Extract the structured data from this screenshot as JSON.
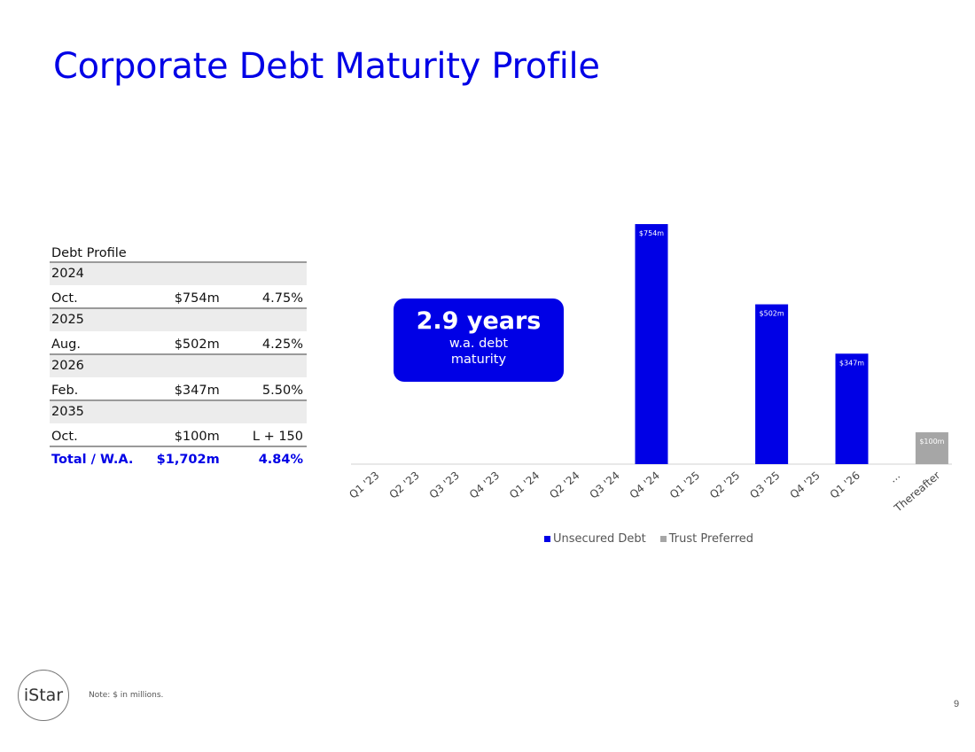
{
  "title": "Corporate Debt Maturity Profile",
  "table": {
    "header": "Debt Profile",
    "groups": [
      {
        "year": "2024",
        "month": "Oct.",
        "amount": "$754m",
        "rate": "4.75%"
      },
      {
        "year": "2025",
        "month": "Aug.",
        "amount": "$502m",
        "rate": "4.25%"
      },
      {
        "year": "2026",
        "month": "Feb.",
        "amount": "$347m",
        "rate": "5.50%"
      },
      {
        "year": "2035",
        "month": "Oct.",
        "amount": "$100m",
        "rate": "L + 150"
      }
    ],
    "total": {
      "label": "Total / W.A.",
      "amount": "$1,702m",
      "rate": "4.84%"
    }
  },
  "callout": {
    "value": "2.9 years",
    "line1": "w.a. debt",
    "line2": "maturity"
  },
  "colors": {
    "accent": "#0000e6",
    "unsecured": "#0000e6",
    "trust": "#a6a6a6"
  },
  "chart_data": {
    "type": "bar",
    "categories": [
      "Q1 '23",
      "Q2 '23",
      "Q3 '23",
      "Q4 '23",
      "Q1 '24",
      "Q2 '24",
      "Q3 '24",
      "Q4 '24",
      "Q1 '25",
      "Q2 '25",
      "Q3 '25",
      "Q4 '25",
      "Q1 '26",
      "...",
      "Thereafter"
    ],
    "series": [
      {
        "name": "Unsecured Debt",
        "values": [
          0,
          0,
          0,
          0,
          0,
          0,
          0,
          754,
          0,
          0,
          502,
          0,
          347,
          0,
          0
        ]
      },
      {
        "name": "Trust Preferred",
        "values": [
          0,
          0,
          0,
          0,
          0,
          0,
          0,
          0,
          0,
          0,
          0,
          0,
          0,
          0,
          100
        ]
      }
    ],
    "data_labels": [
      "",
      "",
      "",
      "",
      "",
      "",
      "",
      "$754m",
      "",
      "",
      "$502m",
      "",
      "$347m",
      "",
      "$100m"
    ],
    "title": "",
    "xlabel": "",
    "ylabel": "",
    "ylim": [
      0,
      754
    ],
    "grid": false,
    "legend": "bottom"
  },
  "legend": {
    "unsecured": "Unsecured Debt",
    "trust": "Trust Preferred"
  },
  "footer": {
    "logo_text": "iStar",
    "note": "Note: $ in millions.",
    "page": "9"
  }
}
